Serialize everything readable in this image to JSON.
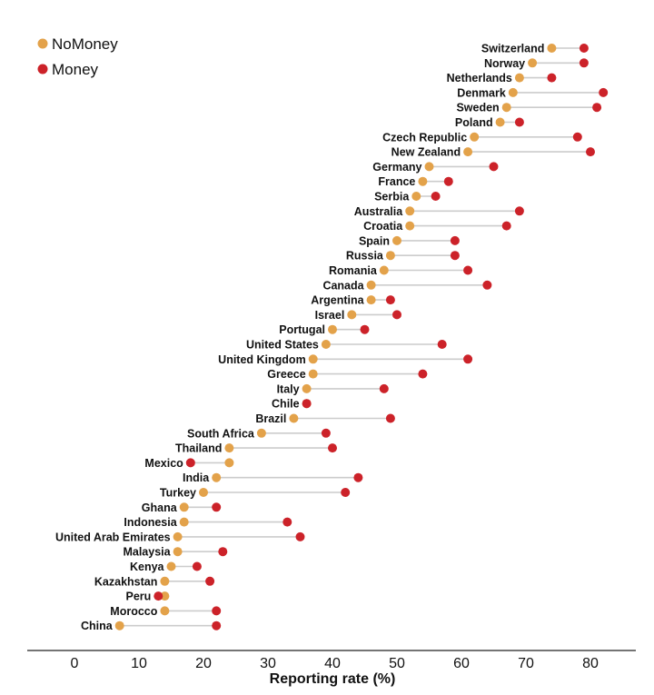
{
  "chart_data": {
    "type": "dumbbell",
    "xlabel": "Reporting rate (%)",
    "xlim": [
      -5,
      85
    ],
    "xticks": [
      0,
      10,
      20,
      30,
      40,
      50,
      60,
      70,
      80
    ],
    "legend_position": "top-left",
    "grid": false,
    "series": [
      {
        "name": "NoMoney",
        "color": "#e3a24a"
      },
      {
        "name": "Money",
        "color": "#cc2229"
      }
    ],
    "categories": [
      "Switzerland",
      "Norway",
      "Netherlands",
      "Denmark",
      "Sweden",
      "Poland",
      "Czech Republic",
      "New Zealand",
      "Germany",
      "France",
      "Serbia",
      "Australia",
      "Croatia",
      "Spain",
      "Russia",
      "Romania",
      "Canada",
      "Argentina",
      "Israel",
      "Portugal",
      "United States",
      "United Kingdom",
      "Greece",
      "Italy",
      "Chile",
      "Brazil",
      "South Africa",
      "Thailand",
      "Mexico",
      "India",
      "Turkey",
      "Ghana",
      "Indonesia",
      "United Arab Emirates",
      "Malaysia",
      "Kenya",
      "Kazakhstan",
      "Peru",
      "Morocco",
      "China"
    ],
    "nomoney": [
      74,
      71,
      69,
      68,
      67,
      66,
      62,
      61,
      55,
      54,
      53,
      52,
      52,
      50,
      49,
      48,
      46,
      46,
      43,
      40,
      39,
      37,
      37,
      36,
      36,
      34,
      29,
      24,
      24,
      22,
      20,
      17,
      17,
      16,
      16,
      15,
      14,
      14,
      14,
      7
    ],
    "money": [
      79,
      79,
      74,
      82,
      81,
      69,
      78,
      80,
      65,
      58,
      56,
      69,
      67,
      59,
      59,
      61,
      64,
      49,
      50,
      45,
      57,
      61,
      54,
      48,
      36,
      49,
      39,
      40,
      18,
      44,
      42,
      22,
      33,
      35,
      23,
      19,
      21,
      13,
      22,
      22
    ]
  }
}
